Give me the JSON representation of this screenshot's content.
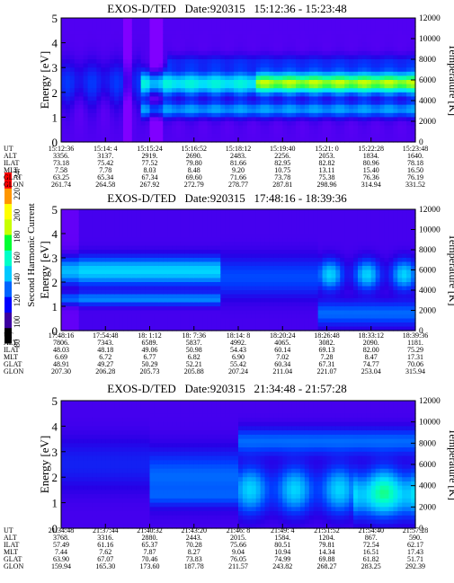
{
  "colorbar": {
    "label": "Second Harmonic Current",
    "ticks": [
      "80",
      "100",
      "120",
      "140",
      "160",
      "180",
      "200",
      "220",
      "240"
    ],
    "colors": [
      "#000000",
      "#3c00a0",
      "#0000ff",
      "#0064ff",
      "#00c8ff",
      "#00ffc8",
      "#00ff32",
      "#c8ff00",
      "#ffff00",
      "#ff9600",
      "#ff0000"
    ]
  },
  "axes": {
    "energy_label": "Energy [eV]",
    "temp_label": "Temperature [K]",
    "energy_ticks": [
      "0",
      "1",
      "2",
      "3",
      "4",
      "5"
    ],
    "temp_ticks": [
      "0",
      "2000",
      "4000",
      "6000",
      "8000",
      "10000",
      "12000"
    ],
    "row_labels": [
      "UT",
      "ALT",
      "ILAT",
      "MLT",
      "GLAT",
      "GLON"
    ]
  },
  "chart_data": [
    {
      "type": "heatmap",
      "title": "EXOS-D/TED   Date:920315   15:12:36 - 15:23:48",
      "xlabel": "",
      "ylabel": "Energy [eV]",
      "y2label": "Temperature [K]",
      "ylim": [
        0,
        5
      ],
      "y2lim": [
        0,
        12000
      ],
      "ephemeris": {
        "UT": [
          "15:12:36",
          "15:14: 4",
          "15:15:24",
          "15:16:52",
          "15:18:12",
          "15:19:40",
          "15:21: 0",
          "15:22:28",
          "15:23:48"
        ],
        "ALT": [
          "3356.",
          "3137.",
          "2919.",
          "2690.",
          "2483.",
          "2256.",
          "2053.",
          "1834.",
          "1640."
        ],
        "ILAT": [
          "73.18",
          "75.42",
          "77.52",
          "79.80",
          "81.66",
          "82.95",
          "82.82",
          "80.96",
          "78.18"
        ],
        "MLT": [
          "7.58",
          "7.78",
          "8.03",
          "8.48",
          "9.20",
          "10.75",
          "13.11",
          "15.40",
          "16.50"
        ],
        "GLAT": [
          "63.25",
          "65.34",
          "67.34",
          "69.60",
          "71.66",
          "73.78",
          "75.38",
          "76.36",
          "76.19"
        ],
        "GLON": [
          "261.74",
          "264.58",
          "267.92",
          "272.79",
          "278.77",
          "287.81",
          "298.96",
          "314.94",
          "331.52"
        ]
      }
    },
    {
      "type": "heatmap",
      "title": "EXOS-D/TED   Date:920315   17:48:16 - 18:39:36",
      "xlabel": "",
      "ylabel": "Energy [eV]",
      "y2label": "Temperature [K]",
      "ylim": [
        0,
        5
      ],
      "y2lim": [
        0,
        12000
      ],
      "ephemeris": {
        "UT": [
          "17:48:16",
          "17:54:48",
          "18: 1:12",
          "18: 7:36",
          "18:14: 8",
          "18:20:24",
          "18:26:48",
          "18:33:12",
          "18:39:36"
        ],
        "ALT": [
          "7806.",
          "7343.",
          "6589.",
          "5837.",
          "4992.",
          "4065.",
          "3082.",
          "2090.",
          "1181."
        ],
        "ILAT": [
          "48.03",
          "48.18",
          "49.06",
          "50.98",
          "54.43",
          "60.14",
          "69.13",
          "82.00",
          "75.29"
        ],
        "MLT": [
          "6.69",
          "6.72",
          "6.77",
          "6.82",
          "6.90",
          "7.02",
          "7.28",
          "8.47",
          "17.31"
        ],
        "GLAT": [
          "48.91",
          "49.27",
          "50.29",
          "52.21",
          "55.42",
          "60.34",
          "67.31",
          "74.77",
          "70.06"
        ],
        "GLON": [
          "207.30",
          "206.28",
          "205.73",
          "205.88",
          "207.24",
          "211.04",
          "221.07",
          "253.04",
          "315.94"
        ]
      }
    },
    {
      "type": "heatmap",
      "title": "EXOS-D/TED   Date:920315   21:34:48 - 21:57:28",
      "xlabel": "",
      "ylabel": "Energy [eV]",
      "y2label": "Temperature [K]",
      "ylim": [
        0,
        5
      ],
      "y2lim": [
        0,
        12000
      ],
      "ephemeris": {
        "UT": [
          "21:34:48",
          "21:37:44",
          "21:40:32",
          "21:43:20",
          "21:46: 8",
          "21:49: 4",
          "21:51:52",
          "21:54:40",
          "21:57:28"
        ],
        "ALT": [
          "3768.",
          "3316.",
          "2880.",
          "2443.",
          "2015.",
          "1584.",
          "1204.",
          "867.",
          "590."
        ],
        "ILAT": [
          "57.49",
          "61.16",
          "65.37",
          "70.28",
          "75.66",
          "80.51",
          "79.81",
          "72.54",
          "62.17"
        ],
        "MLT": [
          "7.44",
          "7.62",
          "7.87",
          "8.27",
          "9.04",
          "10.94",
          "14.34",
          "16.51",
          "17.43"
        ],
        "GLAT": [
          "63.90",
          "67.07",
          "70.46",
          "73.83",
          "76.05",
          "74.99",
          "69.88",
          "61.82",
          "51.71"
        ],
        "GLON": [
          "159.94",
          "165.30",
          "173.60",
          "187.78",
          "211.57",
          "243.82",
          "268.27",
          "283.25",
          "292.39"
        ]
      }
    }
  ]
}
